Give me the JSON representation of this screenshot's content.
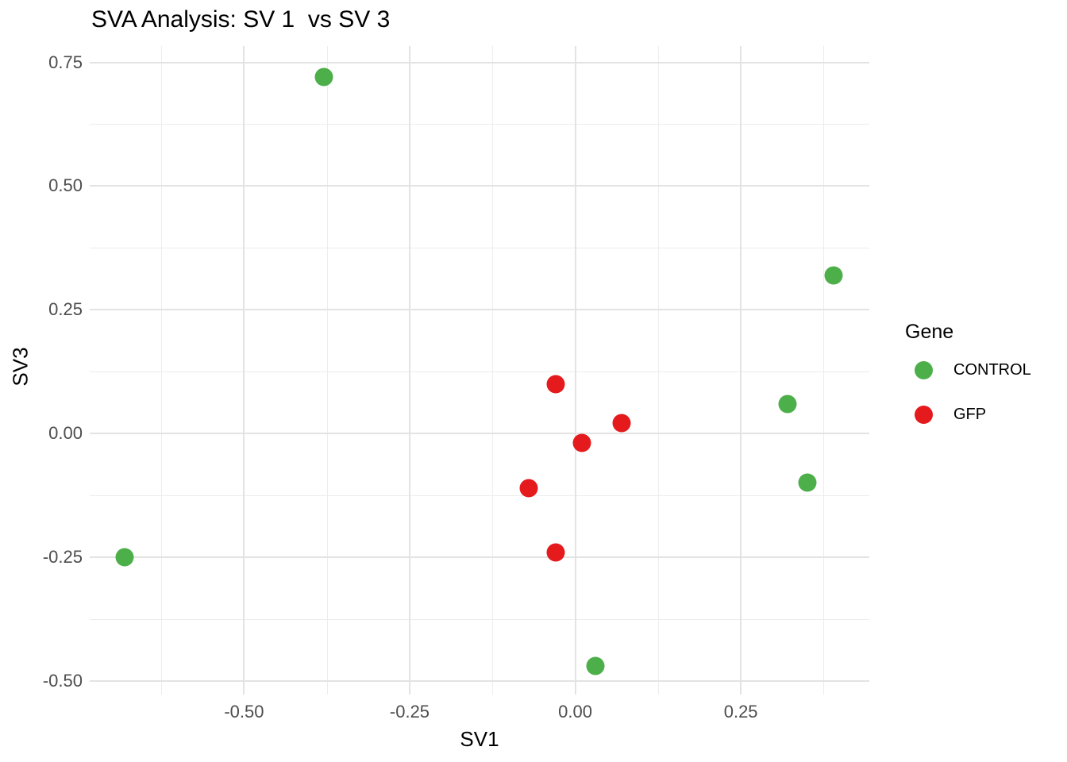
{
  "chart_data": {
    "type": "scatter",
    "title": "SVA Analysis: SV 1  vs SV 3",
    "xlabel": "SV1",
    "ylabel": "SV3",
    "legend_title": "Gene",
    "legend_position": "right",
    "grid": "major-and-minor",
    "background_color": "#ffffff",
    "grid_major_color": "#e3e3e3",
    "grid_minor_color": "#ededed",
    "tick_label_color": "#4d4d4d",
    "text_color": "#000000",
    "xlim": [
      -0.733,
      0.444
    ],
    "ylim": [
      -0.528,
      0.783
    ],
    "x_major_ticks": [
      -0.5,
      -0.25,
      0.0,
      0.25
    ],
    "x_tick_labels": [
      "-0.50",
      "-0.25",
      "0.00",
      "0.25"
    ],
    "x_minor_ticks": [
      -0.625,
      -0.375,
      -0.125,
      0.125,
      0.375
    ],
    "y_major_ticks": [
      0.75,
      0.5,
      0.25,
      0.0,
      -0.25,
      -0.5
    ],
    "y_tick_labels": [
      "0.75",
      "0.50",
      "0.25",
      "0.00",
      "-0.25",
      "-0.50"
    ],
    "y_minor_ticks": [
      0.625,
      0.375,
      0.125,
      -0.125,
      -0.375
    ],
    "series": [
      {
        "name": "CONTROL",
        "color": "#4daf4a",
        "points": [
          [
            -0.38,
            0.72
          ],
          [
            0.39,
            0.32
          ],
          [
            0.32,
            0.06
          ],
          [
            0.35,
            -0.1
          ],
          [
            -0.68,
            -0.25
          ],
          [
            0.03,
            -0.47
          ]
        ]
      },
      {
        "name": "GFP",
        "color": "#e41a1c",
        "points": [
          [
            -0.03,
            0.1
          ],
          [
            0.07,
            0.02
          ],
          [
            0.01,
            -0.02
          ],
          [
            -0.07,
            -0.11
          ],
          [
            -0.03,
            -0.24
          ]
        ]
      }
    ]
  }
}
